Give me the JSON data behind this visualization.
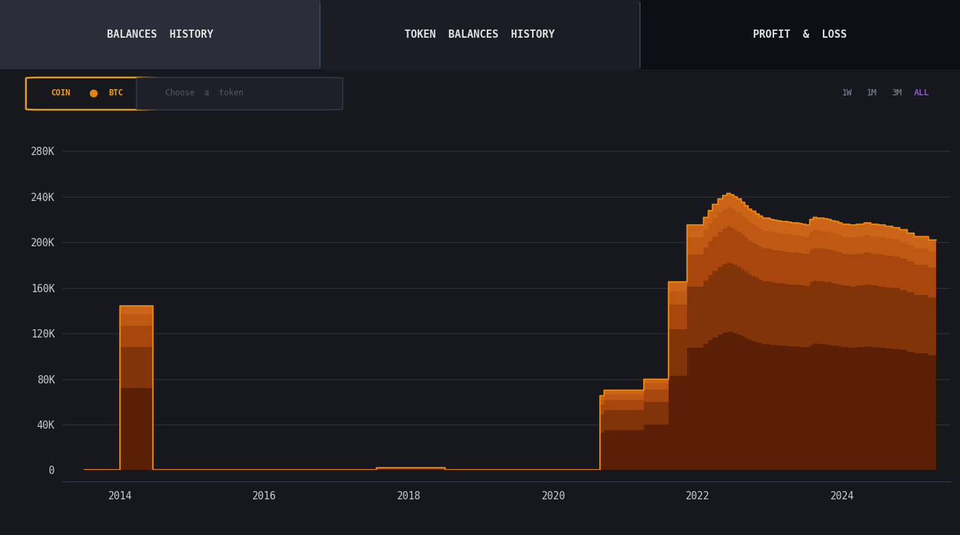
{
  "bg_color": "#16181d",
  "tab_bg_active": "#2a2d38",
  "tab_bg_middle": "#1a1d24",
  "tab_bg_right": "#0d0f14",
  "grid_color": "#2e3240",
  "text_color": "#cccccc",
  "accent_color": "#e8a020",
  "purple_color": "#8855cc",
  "line_color": "#e8820a",
  "fill_dark": "#5a2005",
  "fill_mid": "#8b3a0a",
  "fill_bright": "#c05010",
  "tabs": [
    "BALANCES  HISTORY",
    "TOKEN  BALANCES  HISTORY",
    "PROFIT  &  LOSS"
  ],
  "filter_labels": [
    "1W",
    "1M",
    "3M",
    "ALL"
  ],
  "active_filter": "ALL",
  "ytick_values": [
    0,
    40000,
    80000,
    120000,
    160000,
    200000,
    240000,
    280000
  ],
  "xtick_values": [
    2014,
    2016,
    2018,
    2020,
    2022,
    2024
  ],
  "ylim": [
    -10000,
    300000
  ],
  "xlim": [
    2013.2,
    2025.5
  ],
  "data_x": [
    2013.5,
    2014.0,
    2014.25,
    2014.45,
    2014.55,
    2016.0,
    2017.4,
    2017.55,
    2017.6,
    2018.4,
    2018.5,
    2020.5,
    2020.65,
    2020.7,
    2020.8,
    2021.2,
    2021.25,
    2021.55,
    2021.6,
    2021.8,
    2021.85,
    2021.95,
    2022.0,
    2022.08,
    2022.15,
    2022.2,
    2022.28,
    2022.35,
    2022.4,
    2022.45,
    2022.5,
    2022.55,
    2022.6,
    2022.65,
    2022.7,
    2022.75,
    2022.8,
    2022.85,
    2022.9,
    2022.95,
    2023.0,
    2023.05,
    2023.1,
    2023.15,
    2023.2,
    2023.25,
    2023.3,
    2023.35,
    2023.4,
    2023.45,
    2023.5,
    2023.55,
    2023.6,
    2023.65,
    2023.7,
    2023.75,
    2023.8,
    2023.85,
    2023.9,
    2023.95,
    2024.0,
    2024.1,
    2024.2,
    2024.3,
    2024.4,
    2024.5,
    2024.6,
    2024.7,
    2024.8,
    2024.9,
    2025.0,
    2025.2,
    2025.3
  ],
  "data_y": [
    0,
    144000,
    144000,
    0,
    0,
    0,
    0,
    2000,
    2000,
    2000,
    500,
    500,
    65000,
    70000,
    70000,
    70000,
    80000,
    80000,
    165000,
    165000,
    215000,
    215000,
    215000,
    222000,
    228000,
    233000,
    238000,
    241000,
    243000,
    242000,
    240000,
    238000,
    235000,
    232000,
    229000,
    227000,
    225000,
    223000,
    221000,
    221000,
    220000,
    219500,
    219000,
    218500,
    218000,
    217500,
    217000,
    217000,
    216500,
    216000,
    215500,
    220000,
    222000,
    221500,
    221000,
    220500,
    220000,
    219000,
    218000,
    217000,
    216000,
    215000,
    216000,
    217000,
    216000,
    215000,
    214000,
    213000,
    211000,
    208000,
    205000,
    202000,
    202000
  ]
}
